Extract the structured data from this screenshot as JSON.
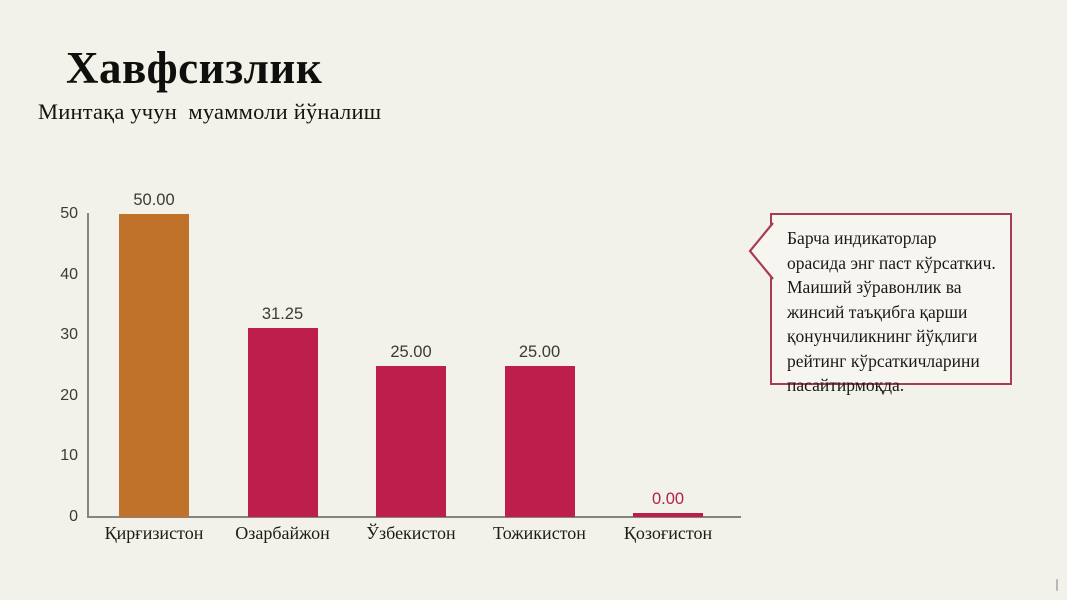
{
  "page": {
    "background": "#f2f1ea"
  },
  "header": {
    "title": "Хавфсизлик",
    "subtitle": "Минтақа учун муаммоли йўналиш"
  },
  "chart_data": {
    "type": "bar",
    "title": "Хавфсизлик",
    "subtitle": "Минтақа учун муаммоли йўналиш",
    "categories": [
      "Қирғизистон",
      "Озарбайжон",
      "Ўзбекистон",
      "Тожикистон",
      "Қозоғистон"
    ],
    "values": [
      50,
      31.25,
      25,
      25,
      0
    ],
    "value_labels": [
      "50.00",
      "31.25",
      "25.00",
      "25.00",
      "0.00"
    ],
    "bar_colors": [
      "#c0722b",
      "#be1e4c",
      "#be1e4c",
      "#be1e4c",
      "#be1e4c"
    ],
    "value_label_colors": [
      "#3a3a38",
      "#3a3a38",
      "#3a3a38",
      "#3a3a38",
      "#b32346"
    ],
    "xlabel": "",
    "ylabel": "",
    "ylim": [
      0,
      50
    ],
    "yticks": [
      0,
      10,
      20,
      30,
      40,
      50
    ],
    "grid": false,
    "legend": false,
    "axis_color": "#85857f"
  },
  "callout": {
    "text": "Барча индикаторлар орасида энг паст кўрсаткич. Маиший зўравонлик ва жинсий таъқибга қарши қонунчиликнинг йўқлиги рейтинг кўрсаткичларини пасайтирмоқда.",
    "border_color": "#a83c55",
    "background": "#f7f5f0"
  }
}
